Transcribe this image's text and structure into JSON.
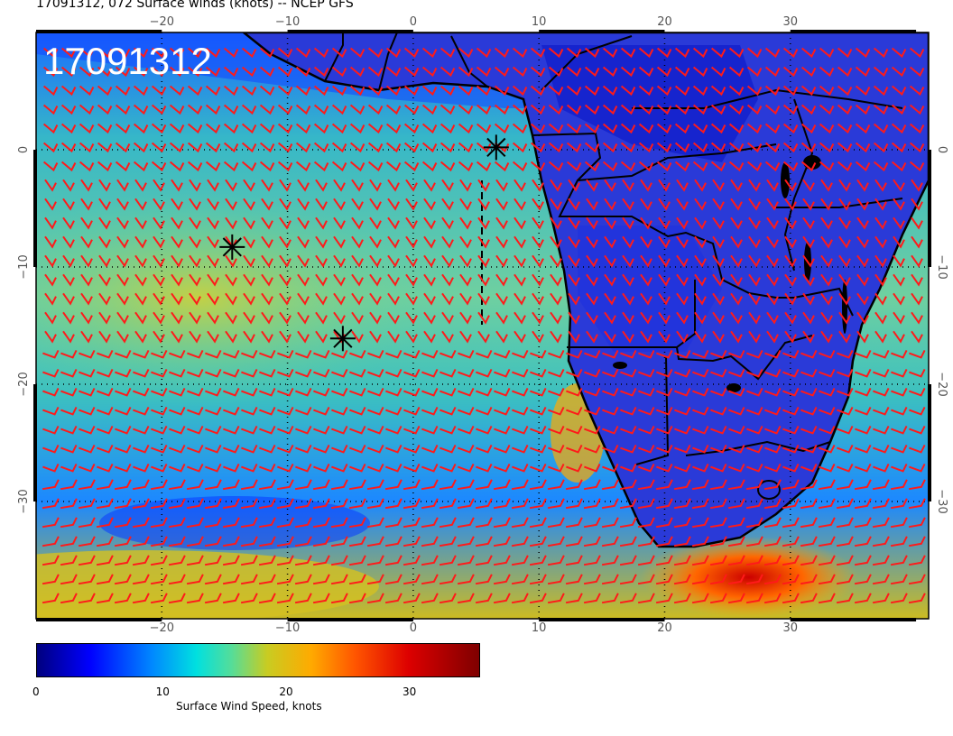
{
  "title": "17091312, 072 Surface winds (knots) -- NCEP GFS",
  "stamp": "17091312",
  "map": {
    "lon_range": [
      -30,
      41
    ],
    "lat_range": [
      -40,
      10
    ],
    "lon_ticks": [
      "-20",
      "-10",
      "0",
      "10",
      "20",
      "30"
    ],
    "lat_ticks": [
      "0",
      "-10",
      "-20",
      "-30"
    ],
    "gridlines": "dotted",
    "field": "Surface wind speed shaded with red wind barbs",
    "markers": [
      {
        "symbol": "asterisk",
        "lon": -14.4,
        "lat": -8.3
      },
      {
        "symbol": "asterisk",
        "lon": -5.6,
        "lat": -16.1
      },
      {
        "symbol": "asterisk",
        "lon": 6.6,
        "lat": 0.2
      }
    ],
    "colors": {
      "barb": "#ff1a1a",
      "coast": "#000000"
    }
  },
  "colorbar": {
    "ticks": [
      "0",
      "10",
      "20",
      "30"
    ],
    "tick_values": [
      0,
      10,
      20,
      30
    ],
    "range": [
      0,
      36
    ],
    "label": "Surface Wind Speed, knots"
  }
}
